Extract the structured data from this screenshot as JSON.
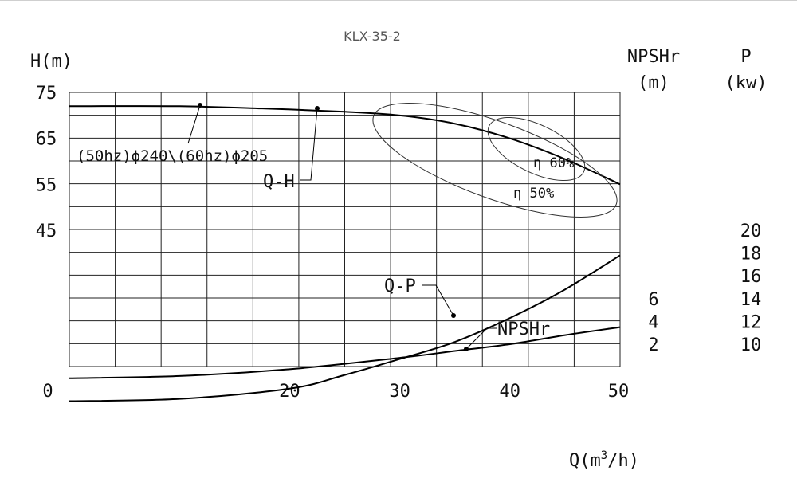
{
  "chart_data": {
    "type": "line",
    "title": "KLX-35-2",
    "xlabel_prefix": "Q(m",
    "xlabel_sup": "3",
    "xlabel_suffix": "/h)",
    "ylabel_head": "H(m)",
    "ylabel_npshr": [
      "NPSHr",
      "(m)"
    ],
    "ylabel_power": [
      "P",
      "(kw)"
    ],
    "x_ticks": [
      "0",
      "20",
      "30",
      "40",
      "50"
    ],
    "x_tick_values": [
      0,
      20,
      30,
      40,
      50
    ],
    "xlim": [
      0,
      50
    ],
    "head_ticks": [
      "75",
      "65",
      "55",
      "45"
    ],
    "head_tick_values": [
      75,
      65,
      55,
      45
    ],
    "npshr_ticks": [
      "6",
      "4",
      "2"
    ],
    "npshr_tick_values": [
      6,
      4,
      2
    ],
    "power_ticks": [
      "20",
      "18",
      "16",
      "14",
      "12",
      "10"
    ],
    "power_tick_values": [
      20,
      18,
      16,
      14,
      12,
      10
    ],
    "grid": true,
    "series": [
      {
        "name": "Q-H",
        "axis": "head",
        "x": [
          0,
          10,
          17.5,
          25,
          30,
          35,
          40,
          45,
          50
        ],
        "y": [
          72,
          72,
          71.5,
          70.8,
          70,
          68.2,
          65,
          60.5,
          55
        ]
      },
      {
        "name": "Q-P",
        "axis": "power",
        "x": [
          0,
          10,
          20,
          25,
          30,
          35,
          40,
          45,
          50
        ],
        "y": [
          5,
          5.2,
          6.1,
          7.3,
          8.7,
          10.2,
          12.3,
          14.8,
          17.8
        ]
      },
      {
        "name": "NPSHr",
        "axis": "npshr",
        "x": [
          0,
          10,
          20,
          30,
          35,
          40,
          45,
          50
        ],
        "y": [
          -1,
          -0.8,
          -0.2,
          0.8,
          1.4,
          2.0,
          2.8,
          3.5
        ]
      }
    ],
    "annotations": {
      "impeller_label": "(50hz)ϕ240\\(60hz)ϕ205",
      "qh_label": "Q-H",
      "qp_label": "Q-P",
      "npshr_label": "NPSHr",
      "eff_60_label": "η 60%",
      "eff_50_label": "η 50%"
    }
  }
}
